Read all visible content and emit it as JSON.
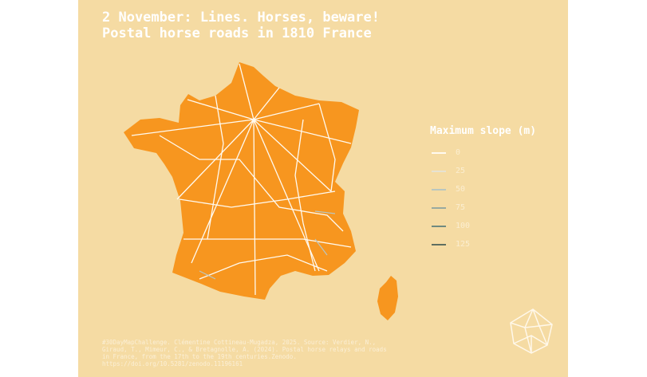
{
  "title": {
    "line1": "2 November: Lines. Horses, beware!",
    "line2": "Postal horse roads in 1810 France"
  },
  "legend": {
    "title": "Maximum slope (m)",
    "items": [
      {
        "label": "0",
        "color": "#fffaf0"
      },
      {
        "label": "25",
        "color": "#e6e2d2"
      },
      {
        "label": "50",
        "color": "#b9c6c0"
      },
      {
        "label": "75",
        "color": "#98aaa0"
      },
      {
        "label": "100",
        "color": "#6f8a80"
      },
      {
        "label": "125",
        "color": "#5e6e60"
      }
    ]
  },
  "caption": "#30DayMapChallenge. Clémentine Cottineau-Mugadza, 2025. Source: Verdier, N., Giraud, T., Mimeur, C., & Bretagnolle, A. (2024). Postal horse relays and roads in France, from the 17th to the 19th centuries.Zenodo. https://doi.org/10.5281/zenodo.11196161",
  "colors": {
    "background": "#f5dba3",
    "land": "#f7961f",
    "roads": "#fffaf0"
  },
  "logo": "star-polyhedron-logo"
}
